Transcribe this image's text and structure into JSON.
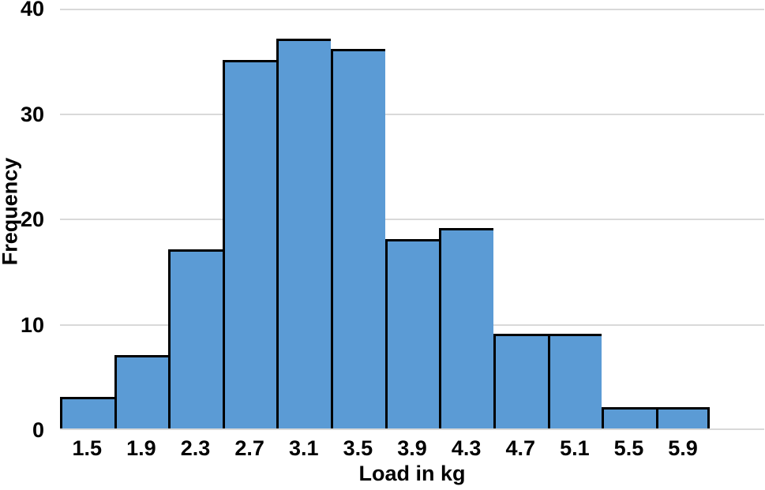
{
  "chart_data": {
    "type": "bar",
    "subtype": "histogram",
    "title": "",
    "xlabel": "Load in kg",
    "ylabel": "Frequency",
    "categories": [
      "1.5",
      "1.9",
      "2.3",
      "2.7",
      "3.1",
      "3.5",
      "3.9",
      "4.3",
      "4.7",
      "5.1",
      "5.5",
      "5.9"
    ],
    "values": [
      3,
      7,
      17,
      35,
      37,
      36,
      18,
      19,
      9,
      9,
      2,
      2
    ],
    "ylim": [
      0,
      40
    ],
    "yticks": [
      0,
      10,
      20,
      30,
      40
    ],
    "bin_width": 0.4,
    "empty_trailing_slots": 1,
    "grid": "horizontal",
    "legend_position": "none",
    "colors": {
      "bar_fill": "#5B9BD5",
      "bar_border": "#000000",
      "gridline": "#D9D9D9",
      "text": "#000000",
      "background": "#FFFFFF"
    }
  }
}
